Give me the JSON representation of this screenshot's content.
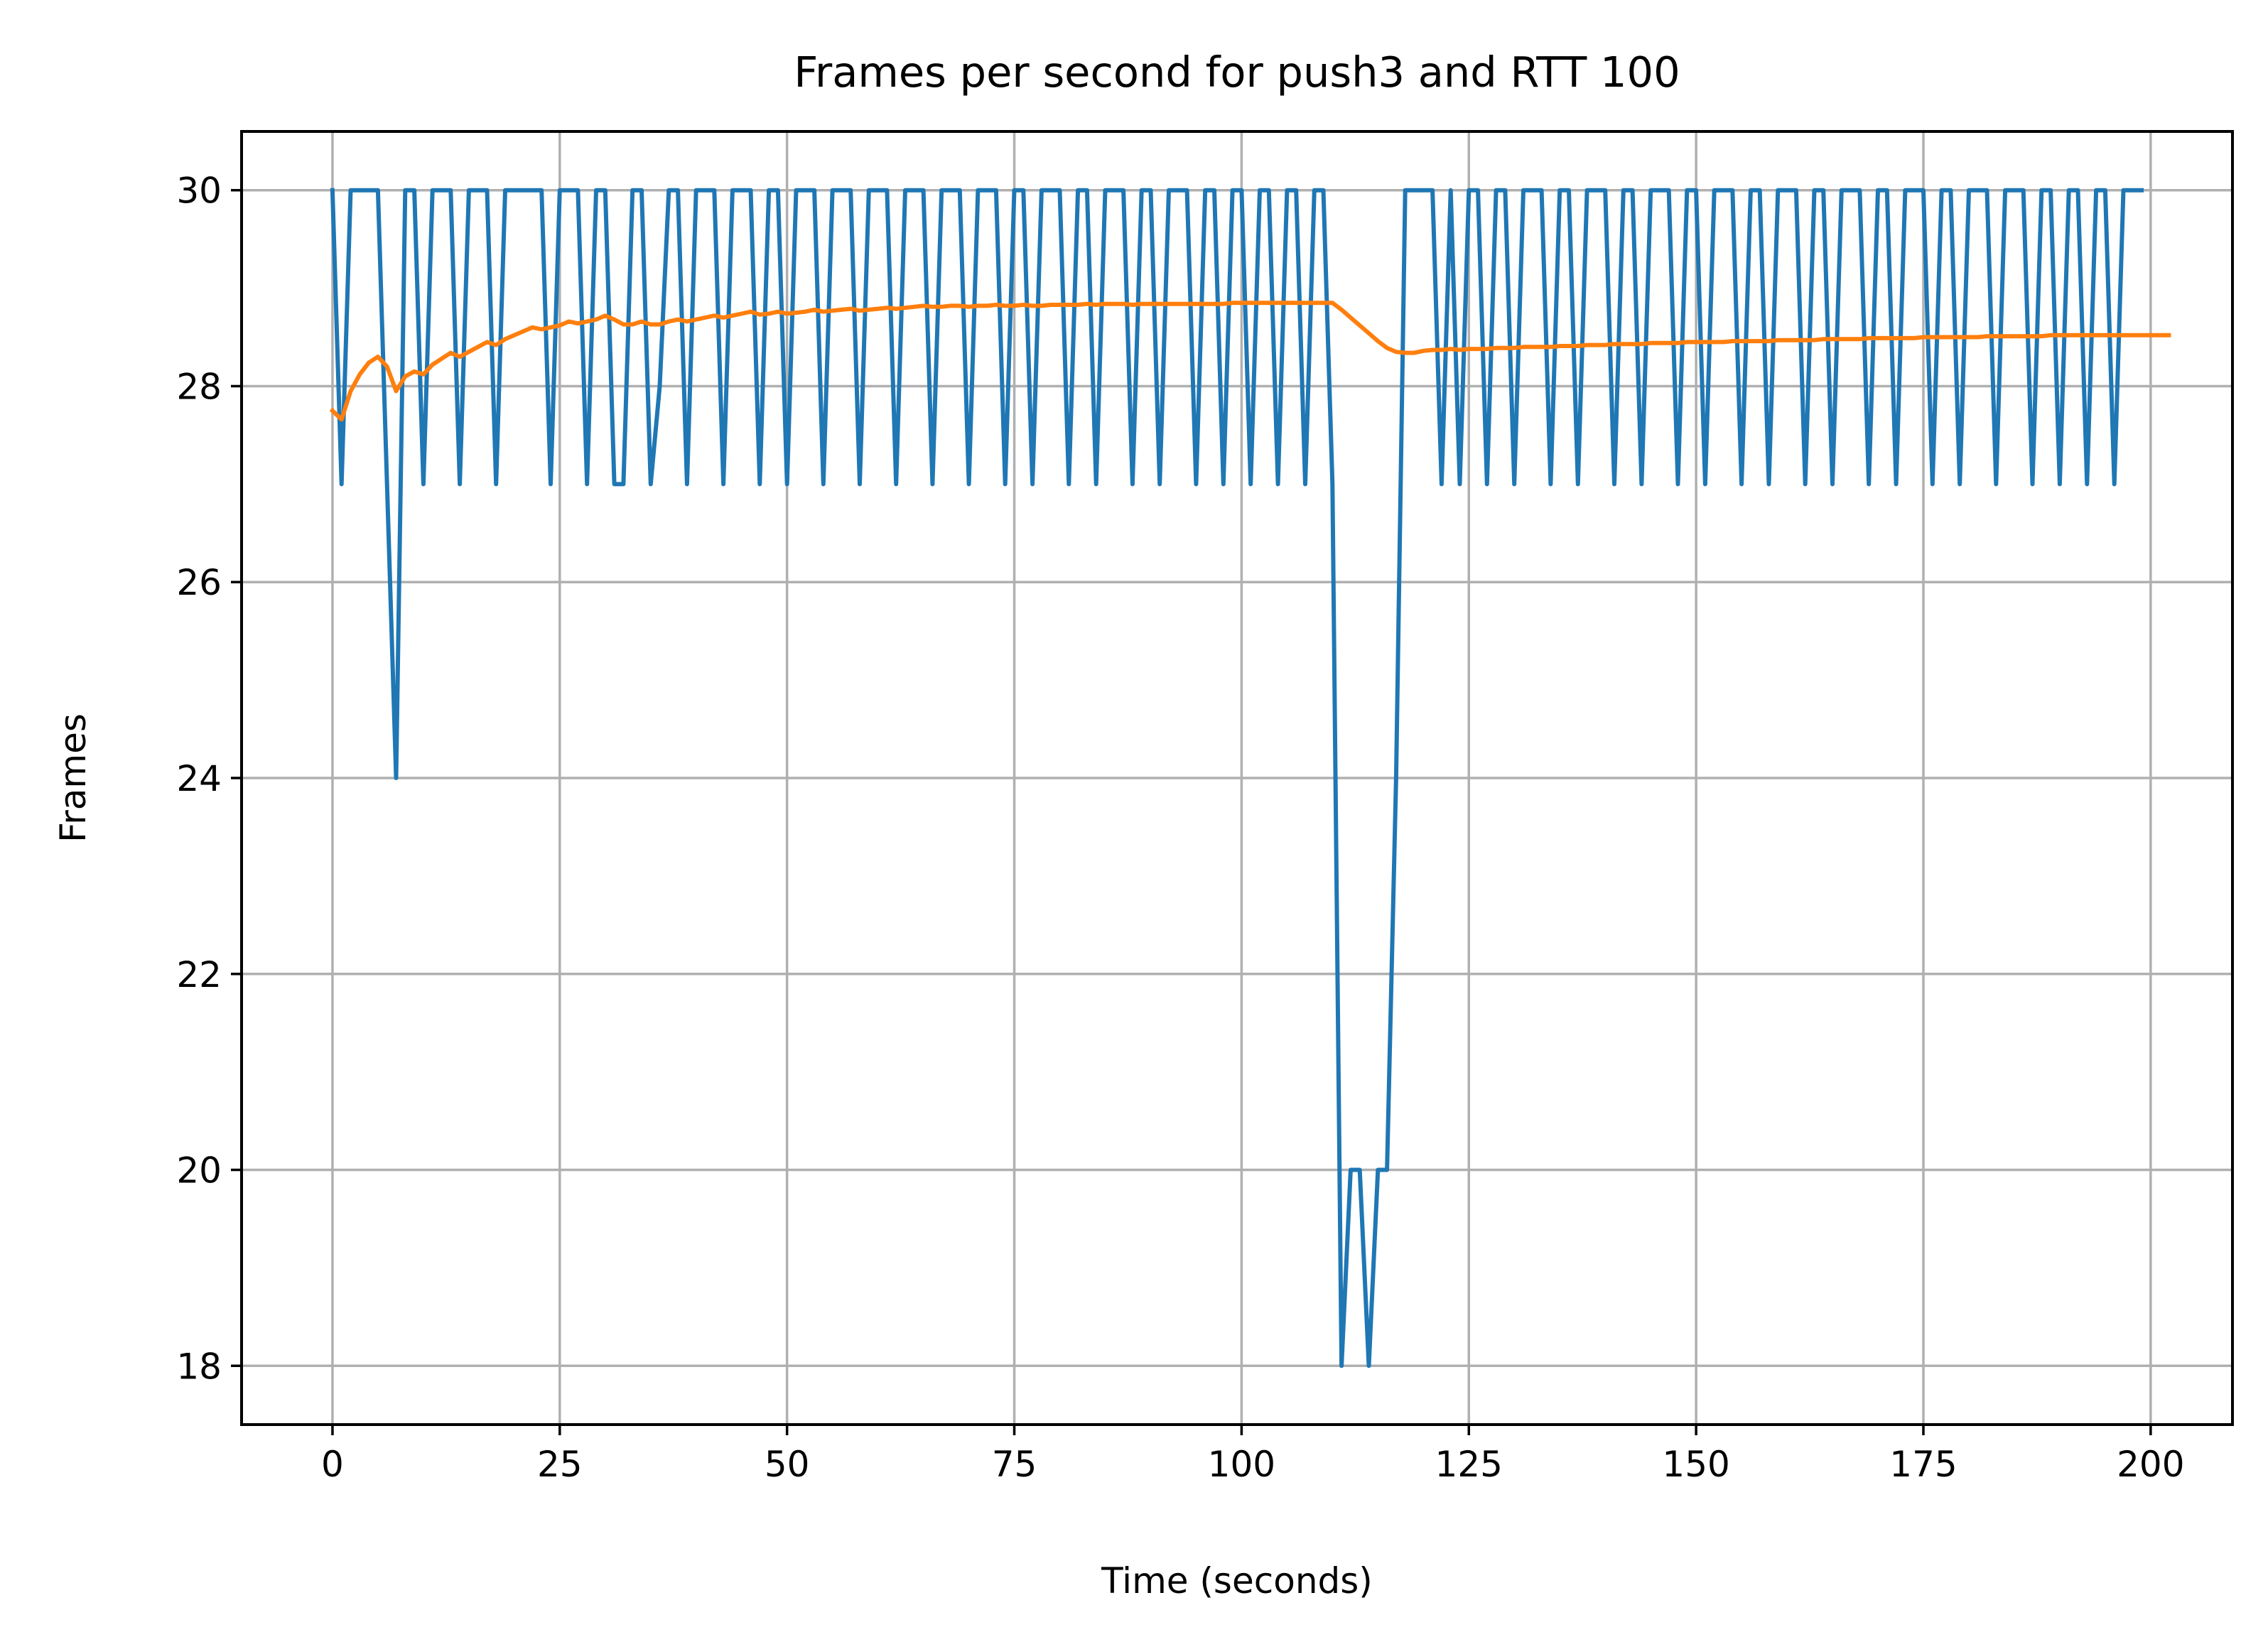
{
  "chart_data": {
    "type": "line",
    "title": "Frames per second for push3 and RTT 100",
    "xlabel": "Time (seconds)",
    "ylabel": "Frames",
    "xlim": [
      -10,
      209
    ],
    "ylim": [
      17.4,
      30.6
    ],
    "xticks": [
      0,
      25,
      50,
      75,
      100,
      125,
      150,
      175,
      200
    ],
    "yticks": [
      18,
      20,
      22,
      24,
      26,
      28,
      30
    ],
    "xtick_labels": [
      "0",
      "25",
      "50",
      "75",
      "100",
      "125",
      "150",
      "175",
      "200"
    ],
    "ytick_labels": [
      "18",
      "20",
      "22",
      "24",
      "26",
      "28",
      "30"
    ],
    "grid": true,
    "series": [
      {
        "color": "#1f77b4",
        "values": [
          30,
          27,
          30,
          30,
          30,
          30,
          27,
          24,
          30,
          30,
          27,
          30,
          30,
          30,
          27,
          30,
          30,
          30,
          27,
          30,
          30,
          30,
          30,
          30,
          27,
          30,
          30,
          30,
          27,
          30,
          30,
          27,
          27,
          30,
          30,
          27,
          28,
          30,
          30,
          27,
          30,
          30,
          30,
          27,
          30,
          30,
          30,
          27,
          30,
          30,
          27,
          30,
          30,
          30,
          27,
          30,
          30,
          30,
          27,
          30,
          30,
          30,
          27,
          30,
          30,
          30,
          27,
          30,
          30,
          30,
          27,
          30,
          30,
          30,
          27,
          30,
          30,
          27,
          30,
          30,
          30,
          27,
          30,
          30,
          27,
          30,
          30,
          30,
          27,
          30,
          30,
          27,
          30,
          30,
          30,
          27,
          30,
          30,
          27,
          30,
          30,
          27,
          30,
          30,
          27,
          30,
          30,
          27,
          30,
          30,
          27,
          18,
          20,
          20,
          18,
          20,
          20,
          24,
          30,
          30,
          30,
          30,
          27,
          30,
          27,
          30,
          30,
          27,
          30,
          30,
          27,
          30,
          30,
          30,
          27,
          30,
          30,
          27,
          30,
          30,
          30,
          27,
          30,
          30,
          27,
          30,
          30,
          30,
          27,
          30,
          30,
          27,
          30,
          30,
          30,
          27,
          30,
          30,
          27,
          30,
          30,
          30,
          27,
          30,
          30,
          27,
          30,
          30,
          30,
          27,
          30,
          30,
          27,
          30,
          30,
          30,
          27,
          30,
          30,
          27,
          30,
          30,
          30,
          27,
          30,
          30,
          30,
          27,
          30,
          30,
          27,
          30,
          30,
          27,
          30,
          30,
          27,
          30,
          30,
          30
        ]
      },
      {
        "color": "#ff7f0e",
        "values": [
          27.75,
          27.66,
          27.95,
          28.12,
          28.24,
          28.3,
          28.2,
          27.95,
          28.1,
          28.15,
          28.12,
          28.22,
          28.28,
          28.34,
          28.3,
          28.35,
          28.4,
          28.45,
          28.42,
          28.48,
          28.52,
          28.56,
          28.6,
          28.58,
          28.6,
          28.62,
          28.66,
          28.64,
          28.66,
          28.68,
          28.72,
          28.68,
          28.63,
          28.63,
          28.66,
          28.63,
          28.63,
          28.66,
          28.68,
          28.66,
          28.68,
          28.7,
          28.72,
          28.7,
          28.72,
          28.74,
          28.76,
          28.73,
          28.74,
          28.76,
          28.74,
          28.75,
          28.76,
          28.78,
          28.76,
          28.77,
          28.78,
          28.79,
          28.77,
          28.78,
          28.79,
          28.8,
          28.79,
          28.8,
          28.81,
          28.82,
          28.81,
          28.81,
          28.82,
          28.82,
          28.81,
          28.82,
          28.82,
          28.83,
          28.82,
          28.82,
          28.83,
          28.82,
          28.82,
          28.83,
          28.83,
          28.83,
          28.83,
          28.84,
          28.83,
          28.84,
          28.84,
          28.84,
          28.83,
          28.84,
          28.84,
          28.84,
          28.84,
          28.84,
          28.84,
          28.84,
          28.84,
          28.84,
          28.84,
          28.85,
          28.85,
          28.85,
          28.85,
          28.85,
          28.85,
          28.85,
          28.85,
          28.85,
          28.85,
          28.85,
          28.85,
          28.78,
          28.7,
          28.62,
          28.54,
          28.46,
          28.39,
          28.35,
          28.34,
          28.34,
          28.36,
          28.37,
          28.37,
          28.38,
          28.37,
          28.38,
          28.38,
          28.38,
          28.39,
          28.39,
          28.39,
          28.4,
          28.4,
          28.4,
          28.4,
          28.41,
          28.41,
          28.41,
          28.42,
          28.42,
          28.42,
          28.43,
          28.43,
          28.43,
          28.43,
          28.44,
          28.44,
          28.44,
          28.44,
          28.45,
          28.45,
          28.45,
          28.45,
          28.45,
          28.46,
          28.46,
          28.46,
          28.46,
          28.46,
          28.47,
          28.47,
          28.47,
          28.47,
          28.47,
          28.48,
          28.48,
          28.48,
          28.48,
          28.48,
          28.49,
          28.49,
          28.49,
          28.49,
          28.49,
          28.49,
          28.5,
          28.5,
          28.5,
          28.5,
          28.5,
          28.5,
          28.5,
          28.51,
          28.51,
          28.51,
          28.51,
          28.51,
          28.51,
          28.51,
          28.52,
          28.52,
          28.52,
          28.52,
          28.52,
          28.52,
          28.52,
          28.52,
          28.52,
          28.52,
          28.52,
          28.52,
          28.52,
          28.52
        ]
      }
    ]
  },
  "colors": {
    "grid": "#b0b0b0",
    "axis": "#000000",
    "background": "#ffffff"
  }
}
